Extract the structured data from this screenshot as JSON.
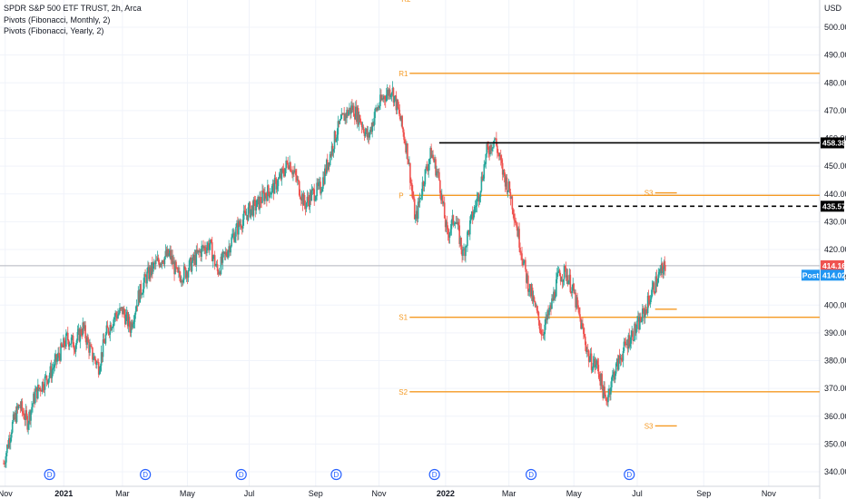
{
  "header": {
    "symbol_title": "SPDR S&P 500 ETF TRUST, 2h, Arca",
    "indicator_1": "Pivots (Fibonacci, Monthly, 2)",
    "indicator_2": "Pivots (Fibonacci, Yearly, 2)"
  },
  "colors": {
    "pivot": "#f59a23",
    "up_candle": "#26a69a",
    "down_candle": "#ef5350",
    "level_black": "#000000",
    "price_tag": "#ef5350",
    "post_tag": "#2196f3",
    "dividend": "#2962ff"
  },
  "chart_data": {
    "type": "candlestick",
    "currency_label": "USD",
    "y_axis_ticks": [
      340,
      350,
      360,
      370,
      380,
      390,
      400,
      410,
      420,
      430,
      440,
      450,
      460,
      470,
      480,
      490,
      500
    ],
    "ylim": [
      338,
      507
    ],
    "x_axis_labels": [
      "Nov",
      "2021",
      "Mar",
      "May",
      "Jul",
      "Sep",
      "Nov",
      "2022",
      "Mar",
      "May",
      "Jul",
      "Sep",
      "Nov"
    ],
    "close_path": [
      [
        0,
        343
      ],
      [
        0.5,
        356
      ],
      [
        1,
        364
      ],
      [
        1.5,
        358
      ],
      [
        2,
        368
      ],
      [
        2.5,
        372
      ],
      [
        3,
        376
      ],
      [
        3.5,
        382
      ],
      [
        4,
        388
      ],
      [
        4.5,
        386
      ],
      [
        5,
        392
      ],
      [
        5.5,
        383
      ],
      [
        6,
        378
      ],
      [
        6.5,
        390
      ],
      [
        7,
        396
      ],
      [
        7.5,
        398
      ],
      [
        8,
        392
      ],
      [
        8.5,
        403
      ],
      [
        9,
        410
      ],
      [
        9.5,
        414
      ],
      [
        10,
        417
      ],
      [
        10.5,
        418
      ],
      [
        11,
        410
      ],
      [
        11.5,
        412
      ],
      [
        12,
        416
      ],
      [
        12.5,
        420
      ],
      [
        13,
        422
      ],
      [
        13.5,
        412
      ],
      [
        14,
        418
      ],
      [
        14.5,
        425
      ],
      [
        15,
        430
      ],
      [
        15.5,
        434
      ],
      [
        16,
        436
      ],
      [
        16.5,
        440
      ],
      [
        17,
        442
      ],
      [
        17.5,
        446
      ],
      [
        18,
        452
      ],
      [
        18.5,
        445
      ],
      [
        19,
        436
      ],
      [
        19.5,
        440
      ],
      [
        20,
        442
      ],
      [
        20.5,
        452
      ],
      [
        21,
        462
      ],
      [
        21.5,
        468
      ],
      [
        22,
        471
      ],
      [
        22.5,
        467
      ],
      [
        23,
        460
      ],
      [
        23.5,
        470
      ],
      [
        24,
        475
      ],
      [
        24.5,
        478
      ],
      [
        25,
        468
      ],
      [
        25.5,
        455
      ],
      [
        26,
        430
      ],
      [
        26.5,
        445
      ],
      [
        27,
        455
      ],
      [
        27.5,
        445
      ],
      [
        28,
        425
      ],
      [
        28.5,
        432
      ],
      [
        29,
        418
      ],
      [
        29.5,
        430
      ],
      [
        30,
        440
      ],
      [
        30.5,
        455
      ],
      [
        31,
        460
      ],
      [
        31.5,
        448
      ],
      [
        32,
        440
      ],
      [
        32.5,
        425
      ],
      [
        33,
        410
      ],
      [
        33.5,
        400
      ],
      [
        34,
        390
      ],
      [
        34.5,
        398
      ],
      [
        35,
        410
      ],
      [
        35.5,
        412
      ],
      [
        36,
        404
      ],
      [
        36.5,
        392
      ],
      [
        37,
        380
      ],
      [
        37.5,
        378
      ],
      [
        38,
        365
      ],
      [
        38.5,
        375
      ],
      [
        39,
        382
      ],
      [
        39.5,
        388
      ],
      [
        40,
        392
      ],
      [
        40.5,
        398
      ],
      [
        41,
        406
      ],
      [
        41.5,
        412
      ],
      [
        41.8,
        414.16
      ]
    ],
    "pivot_levels": [
      {
        "label": "R1",
        "value": 483.4,
        "start": 25.0,
        "end": 60.0,
        "style": "solid"
      },
      {
        "label": "P",
        "value": 439.5,
        "start": 25.0,
        "end": 60.0,
        "style": "solid"
      },
      {
        "label": "S1",
        "value": 395.6,
        "start": 25.0,
        "end": 60.0,
        "style": "solid"
      },
      {
        "label": "S2",
        "value": 368.8,
        "start": 25.0,
        "end": 60.0,
        "style": "solid"
      },
      {
        "label": "S3",
        "value": 440.4,
        "start": 40.5,
        "end": 42.5,
        "style": "solid"
      },
      {
        "label": "P",
        "value": 398.5,
        "start": 40.5,
        "end": 42.5,
        "style": "solid"
      },
      {
        "label": "S3",
        "value": 356.5,
        "start": 40.5,
        "end": 42.5,
        "style": "solid"
      }
    ],
    "top_label": "R2",
    "horizontal_levels": [
      {
        "value": 458.38,
        "label": "458.38",
        "start": 27.5,
        "end": 60.0,
        "style": "solid"
      },
      {
        "value": 435.57,
        "label": "435.57",
        "start": 32.5,
        "end": 60.0,
        "style": "dashed"
      }
    ],
    "last_price": {
      "value": 414.16,
      "label": "414.16"
    },
    "post_market": {
      "value": 414.02,
      "label": "414.02",
      "tag": "Post"
    },
    "dividend_markers": [
      "D",
      "D",
      "D",
      "D",
      "D",
      "D",
      "D"
    ]
  }
}
